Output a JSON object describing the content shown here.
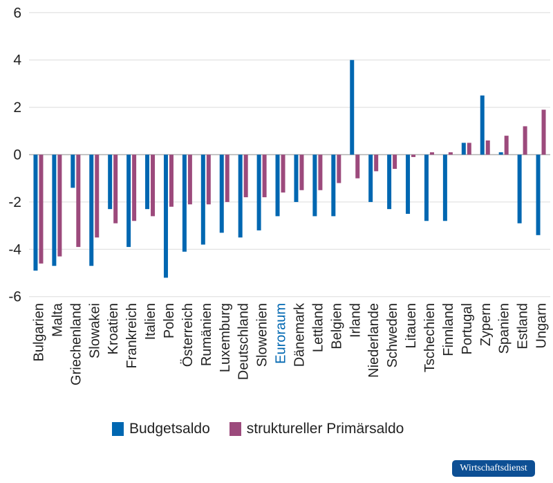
{
  "chart_data": {
    "type": "bar",
    "categories": [
      "Bulgarien",
      "Malta",
      "Griechenland",
      "Slowakei",
      "Kroatien",
      "Frankreich",
      "Italien",
      "Polen",
      "Österreich",
      "Rumänien",
      "Luxemburg",
      "Deutschland",
      "Slowenien",
      "Euroraum",
      "Dänemark",
      "Lettland",
      "Belgien",
      "Irland",
      "Niederlande",
      "Schweden",
      "Litauen",
      "Tschechien",
      "Finnland",
      "Portugal",
      "Zypern",
      "Spanien",
      "Estland",
      "Ungarn"
    ],
    "highlight_category": "Euroraum",
    "series": [
      {
        "name": "Budgetsaldo",
        "color": "#0067b1",
        "values": [
          -4.9,
          -4.7,
          -1.4,
          -4.7,
          -2.3,
          -3.9,
          -2.3,
          -5.2,
          -4.1,
          -3.8,
          -3.3,
          -3.5,
          -3.2,
          -2.6,
          -2.0,
          -2.6,
          -2.6,
          4.0,
          -2.0,
          -2.3,
          -2.5,
          -2.8,
          -2.8,
          0.5,
          2.5,
          0.1,
          -2.9,
          -3.4
        ]
      },
      {
        "name": "struktureller Primärsaldo",
        "color": "#9c4a7c",
        "values": [
          -4.6,
          -4.3,
          -3.9,
          -3.5,
          -2.9,
          -2.8,
          -2.6,
          -2.2,
          -2.1,
          -2.1,
          -2.0,
          -1.8,
          -1.8,
          -1.6,
          -1.5,
          -1.5,
          -1.2,
          -1.0,
          -0.7,
          -0.6,
          -0.1,
          0.1,
          0.1,
          0.5,
          0.6,
          0.8,
          1.2,
          1.9
        ]
      }
    ],
    "yticks": [
      6,
      4,
      2,
      0,
      -2,
      -4,
      -6
    ],
    "ytick_labels": [
      "6",
      "4",
      "2",
      "0",
      "-2",
      "-4",
      "-6"
    ],
    "ylim": [
      -6,
      6
    ],
    "grid": true,
    "legend_position": "bottom",
    "highlight_color": "#0067b1"
  },
  "logo_text": "Wirtschaftsdienst"
}
